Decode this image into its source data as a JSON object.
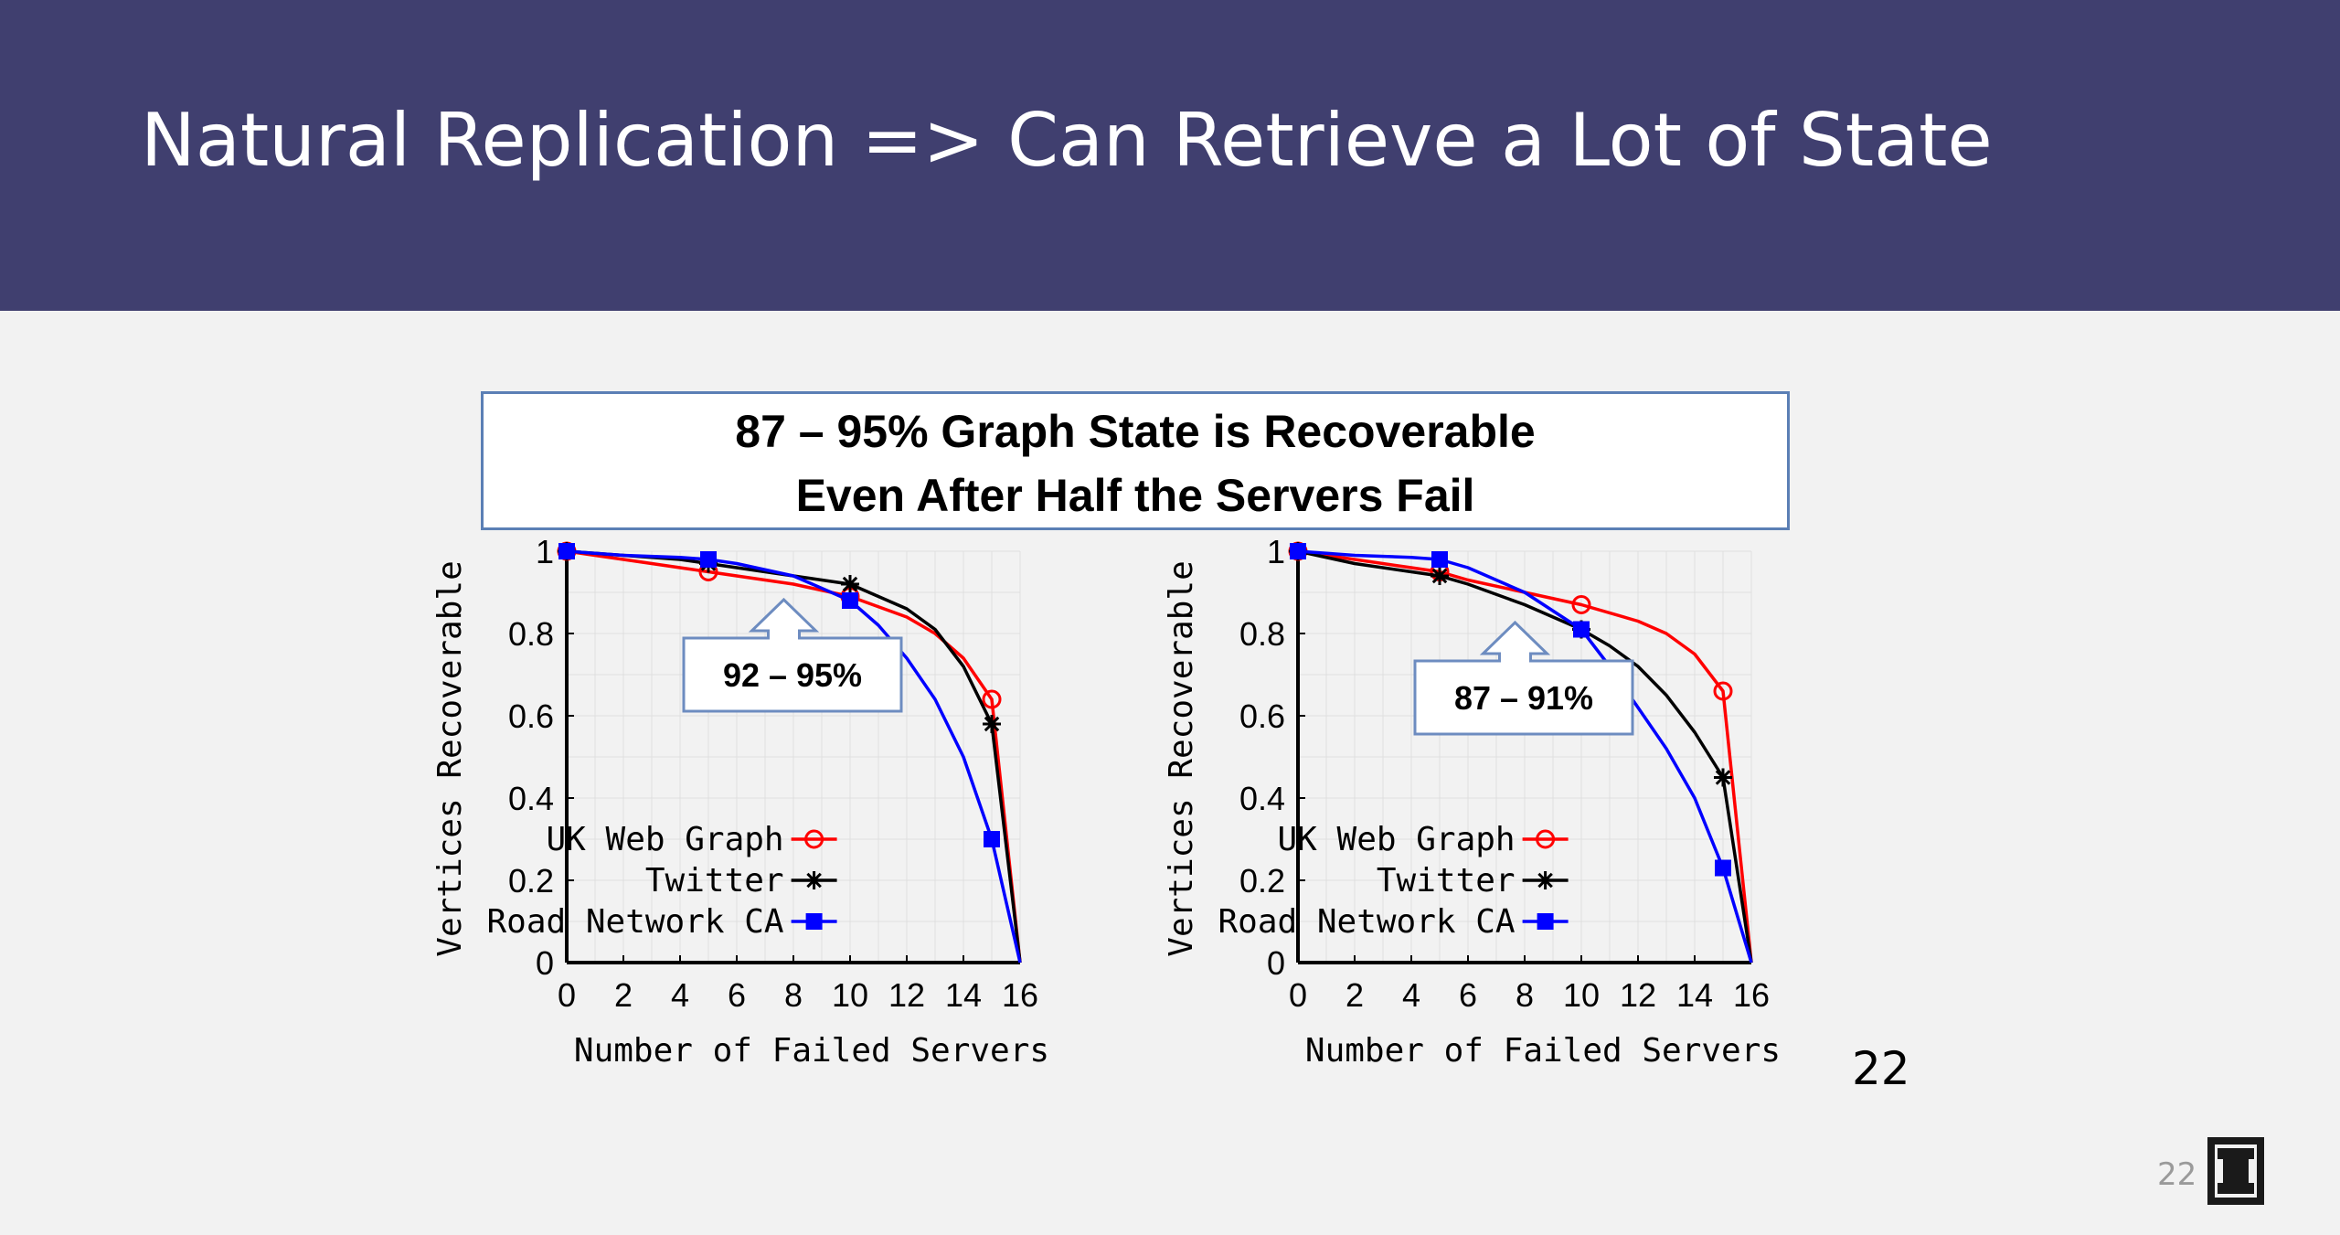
{
  "slide": {
    "title": "Natural Replication => Can Retrieve a Lot of State",
    "callout_line1": "87 – 95% Graph State is Recoverable",
    "callout_line2": "Even After Half the Servers Fail",
    "page_number": "22",
    "footer_page_number": "22",
    "logo_icon": "illinois-block-i-icon",
    "colors": {
      "header_bg": "#403f6f",
      "callout_border": "#5b7fb5",
      "uk_web_graph": "#ff0000",
      "twitter": "#000000",
      "road_network": "#0000ff"
    }
  },
  "chart_data": [
    {
      "type": "line",
      "xlabel": "Number of Failed Servers",
      "ylabel": "Vertices Recoverable",
      "xlim": [
        0,
        16
      ],
      "ylim": [
        0,
        1
      ],
      "xticks": [
        0,
        2,
        4,
        6,
        8,
        10,
        12,
        14,
        16
      ],
      "yticks": [
        0,
        0.2,
        0.4,
        0.6,
        0.8,
        1
      ],
      "ytick_labels": [
        "0",
        "0.2",
        "0.4",
        "0.6",
        "0.8",
        "1"
      ],
      "grid": true,
      "legend_position": "bottom-left",
      "annotation": "92 – 95%",
      "series": [
        {
          "name": "UK Web Graph",
          "color": "#ff0000",
          "marker": "circle",
          "x": [
            0,
            2,
            4,
            5,
            6,
            8,
            10,
            12,
            13,
            14,
            15,
            16
          ],
          "y": [
            1,
            0.98,
            0.96,
            0.95,
            0.94,
            0.92,
            0.89,
            0.84,
            0.8,
            0.74,
            0.64,
            0
          ],
          "marker_x": [
            0,
            5,
            10,
            15
          ]
        },
        {
          "name": "Twitter",
          "color": "#000000",
          "marker": "asterisk",
          "x": [
            0,
            2,
            4,
            5,
            6,
            8,
            10,
            11,
            12,
            13,
            14,
            15,
            16
          ],
          "y": [
            1,
            0.99,
            0.98,
            0.97,
            0.96,
            0.94,
            0.92,
            0.89,
            0.86,
            0.81,
            0.72,
            0.58,
            0
          ],
          "marker_x": [
            0,
            5,
            10,
            15
          ]
        },
        {
          "name": "Road Network CA",
          "color": "#0000ff",
          "marker": "square",
          "x": [
            0,
            2,
            4,
            5,
            6,
            8,
            10,
            11,
            12,
            13,
            14,
            15,
            16
          ],
          "y": [
            1,
            0.99,
            0.985,
            0.98,
            0.97,
            0.94,
            0.88,
            0.82,
            0.74,
            0.64,
            0.5,
            0.3,
            0
          ],
          "marker_x": [
            0,
            5,
            10,
            15
          ]
        }
      ]
    },
    {
      "type": "line",
      "xlabel": "Number of Failed Servers",
      "ylabel": "Vertices Recoverable",
      "xlim": [
        0,
        16
      ],
      "ylim": [
        0,
        1
      ],
      "xticks": [
        0,
        2,
        4,
        6,
        8,
        10,
        12,
        14,
        16
      ],
      "yticks": [
        0,
        0.2,
        0.4,
        0.6,
        0.8,
        1
      ],
      "ytick_labels": [
        "0",
        "0.2",
        "0.4",
        "0.6",
        "0.8",
        "1"
      ],
      "grid": true,
      "legend_position": "bottom-left",
      "annotation": "87 – 91%",
      "series": [
        {
          "name": "UK Web Graph",
          "color": "#ff0000",
          "marker": "circle",
          "x": [
            0,
            2,
            4,
            5,
            6,
            8,
            10,
            12,
            13,
            14,
            15,
            16
          ],
          "y": [
            1,
            0.98,
            0.96,
            0.95,
            0.93,
            0.9,
            0.87,
            0.83,
            0.8,
            0.75,
            0.66,
            0
          ],
          "marker_x": [
            0,
            5,
            10,
            15
          ]
        },
        {
          "name": "Twitter",
          "color": "#000000",
          "marker": "asterisk",
          "x": [
            0,
            2,
            4,
            5,
            6,
            8,
            10,
            11,
            12,
            13,
            14,
            15,
            16
          ],
          "y": [
            1,
            0.97,
            0.95,
            0.94,
            0.92,
            0.87,
            0.81,
            0.77,
            0.72,
            0.65,
            0.56,
            0.45,
            0
          ],
          "marker_x": [
            0,
            5,
            10,
            15
          ]
        },
        {
          "name": "Road Network CA",
          "color": "#0000ff",
          "marker": "square",
          "x": [
            0,
            2,
            4,
            5,
            6,
            8,
            10,
            11,
            12,
            13,
            14,
            15,
            16
          ],
          "y": [
            1,
            0.99,
            0.985,
            0.98,
            0.96,
            0.9,
            0.81,
            0.72,
            0.62,
            0.52,
            0.4,
            0.23,
            0
          ],
          "marker_x": [
            0,
            5,
            10,
            15
          ]
        }
      ]
    }
  ]
}
